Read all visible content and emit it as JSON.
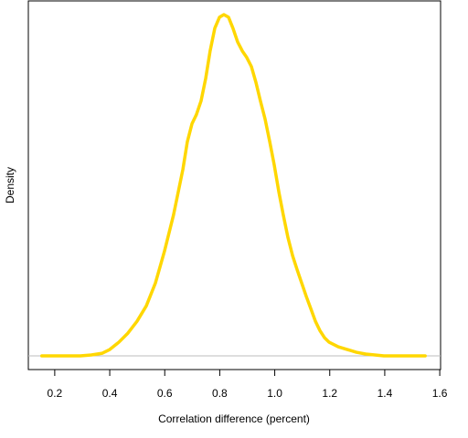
{
  "chart_data": {
    "type": "line",
    "x_label": "Correlation difference (percent)",
    "y_label": "Density",
    "x": [
      0.153,
      0.2,
      0.25,
      0.293,
      0.333,
      0.373,
      0.4,
      0.433,
      0.466,
      0.499,
      0.533,
      0.566,
      0.599,
      0.632,
      0.666,
      0.682,
      0.699,
      0.715,
      0.732,
      0.749,
      0.765,
      0.782,
      0.799,
      0.815,
      0.832,
      0.848,
      0.865,
      0.882,
      0.898,
      0.915,
      0.932,
      0.948,
      0.965,
      0.982,
      0.998,
      1.015,
      1.031,
      1.048,
      1.065,
      1.081,
      1.098,
      1.115,
      1.131,
      1.148,
      1.164,
      1.181,
      1.198,
      1.231,
      1.264,
      1.297,
      1.331,
      1.364,
      1.397,
      1.43,
      1.464,
      1.497,
      1.547
    ],
    "series": [
      {
        "color": "#ffd700",
        "values": [
          0,
          0,
          0,
          0,
          0.009,
          0.026,
          0.062,
          0.132,
          0.22,
          0.334,
          0.484,
          0.704,
          1.012,
          1.364,
          1.804,
          2.068,
          2.244,
          2.332,
          2.464,
          2.684,
          2.948,
          3.168,
          3.274,
          3.3,
          3.274,
          3.168,
          3.036,
          2.948,
          2.886,
          2.798,
          2.64,
          2.464,
          2.288,
          2.068,
          1.848,
          1.584,
          1.364,
          1.144,
          0.968,
          0.836,
          0.704,
          0.572,
          0.458,
          0.334,
          0.246,
          0.176,
          0.132,
          0.088,
          0.062,
          0.035,
          0.018,
          0.009,
          0,
          0,
          0,
          0,
          0
        ]
      }
    ],
    "xlim": [
      0.104,
      1.603
    ],
    "ylim": [
      -0.132,
      3.432
    ],
    "xticks": [
      0.2,
      0.4,
      0.6,
      0.8,
      {
        "value": 1,
        "label": "1.0"
      },
      1.2,
      1.4,
      1.6
    ],
    "hline": 0,
    "hline_color": "#bebebe"
  }
}
